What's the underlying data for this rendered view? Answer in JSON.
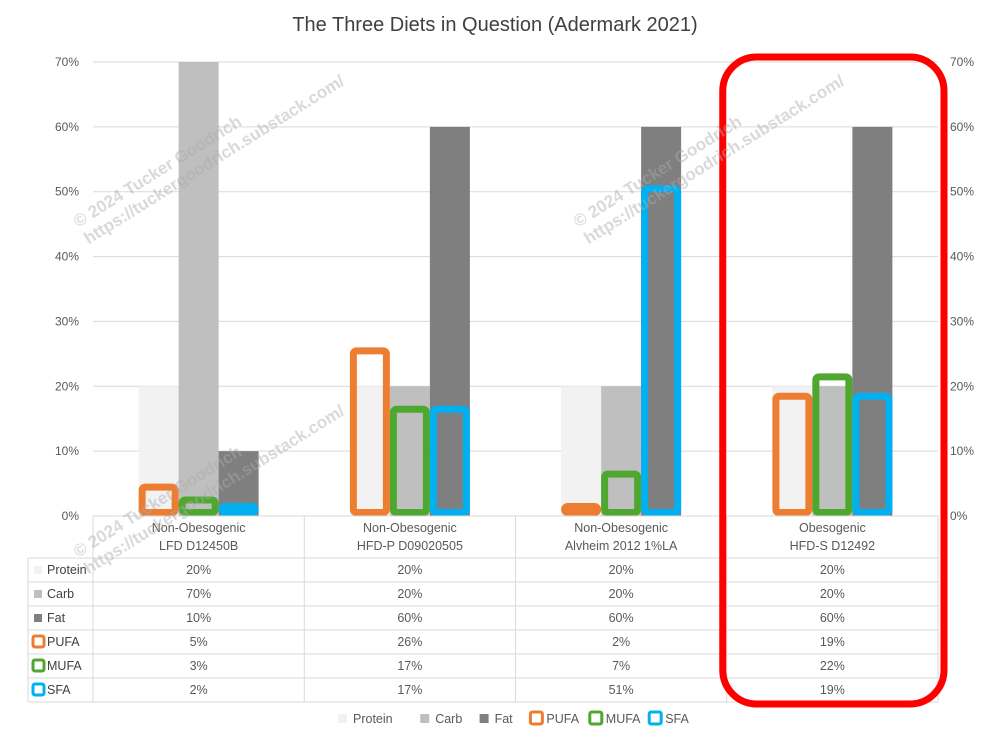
{
  "title": "The Three Diets in Question (Adermark 2021)",
  "watermark": {
    "line1": "© 2024 Tucker Goodrich",
    "line2": "https://tuckergoodrich.substack.com/"
  },
  "colors": {
    "protein": "#f2f2f2",
    "carb": "#bfbfbf",
    "fat": "#7f7f7f",
    "pufa": "#ed7d31",
    "mufa": "#4ea72e",
    "sfa": "#00b0f0",
    "highlight": "#ff0000",
    "grid": "#d9d9d9"
  },
  "chart_data": {
    "type": "bar",
    "title": "The Three Diets in Question (Adermark 2021)",
    "ylim": [
      0,
      0.7
    ],
    "y_ticks": [
      "0%",
      "10%",
      "20%",
      "30%",
      "40%",
      "50%",
      "60%",
      "70%"
    ],
    "secondary_axis": true,
    "grid": true,
    "legend_position": "bottom",
    "categories": [
      [
        "Non-Obesogenic",
        "LFD D12450B"
      ],
      [
        "Non-Obesogenic",
        "HFD-P D09020505"
      ],
      [
        "Non-Obesogenic",
        "Alvheim 2012 1%LA"
      ],
      [
        "Obesogenic",
        "HFD-S D12492"
      ]
    ],
    "series": [
      {
        "name": "Protein",
        "style": "filled",
        "values": [
          0.2,
          0.2,
          0.2,
          0.2
        ],
        "labels": [
          "20%",
          "20%",
          "20%",
          "20%"
        ]
      },
      {
        "name": "Carb",
        "style": "filled",
        "values": [
          0.7,
          0.2,
          0.2,
          0.2
        ],
        "labels": [
          "70%",
          "20%",
          "20%",
          "20%"
        ]
      },
      {
        "name": "Fat",
        "style": "filled",
        "values": [
          0.1,
          0.6,
          0.6,
          0.6
        ],
        "labels": [
          "10%",
          "60%",
          "60%",
          "60%"
        ]
      },
      {
        "name": "PUFA",
        "style": "outline",
        "values": [
          0.05,
          0.26,
          0.02,
          0.19
        ],
        "labels": [
          "5%",
          "26%",
          "2%",
          "19%"
        ]
      },
      {
        "name": "MUFA",
        "style": "outline",
        "values": [
          0.03,
          0.17,
          0.07,
          0.22
        ],
        "labels": [
          "3%",
          "17%",
          "7%",
          "22%"
        ]
      },
      {
        "name": "SFA",
        "style": "outline",
        "values": [
          0.02,
          0.17,
          0.51,
          0.19
        ],
        "labels": [
          "2%",
          "17%",
          "51%",
          "19%"
        ]
      }
    ],
    "highlighted_category": 3
  }
}
